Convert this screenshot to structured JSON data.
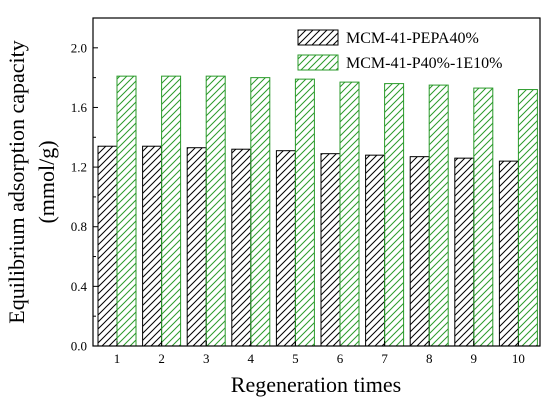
{
  "chart_data": {
    "type": "bar",
    "title": "",
    "xlabel": "Regeneration times",
    "ylabel_line1": "Equilibrium adsorption capacity",
    "ylabel_line2": "(mmol/g)",
    "categories": [
      "1",
      "2",
      "3",
      "4",
      "5",
      "6",
      "7",
      "8",
      "9",
      "10"
    ],
    "ylim": [
      0,
      2.2
    ],
    "yticks": [
      0.0,
      0.4,
      0.8,
      1.2,
      1.6,
      2.0
    ],
    "ytick_labels": [
      "0.0",
      "0.4",
      "0.8",
      "1.2",
      "1.6",
      "2.0"
    ],
    "grid": false,
    "legend_position": "top-right",
    "series": [
      {
        "name": "MCM-41-PEPA40%",
        "color": "#000000",
        "hatch": "diagonal",
        "values": [
          1.34,
          1.34,
          1.33,
          1.32,
          1.31,
          1.29,
          1.28,
          1.27,
          1.26,
          1.24
        ]
      },
      {
        "name": "MCM-41-P40%-1E10%",
        "color": "#2a9a2a",
        "hatch": "diagonal",
        "values": [
          1.81,
          1.81,
          1.81,
          1.8,
          1.79,
          1.77,
          1.76,
          1.75,
          1.73,
          1.72
        ]
      }
    ]
  }
}
